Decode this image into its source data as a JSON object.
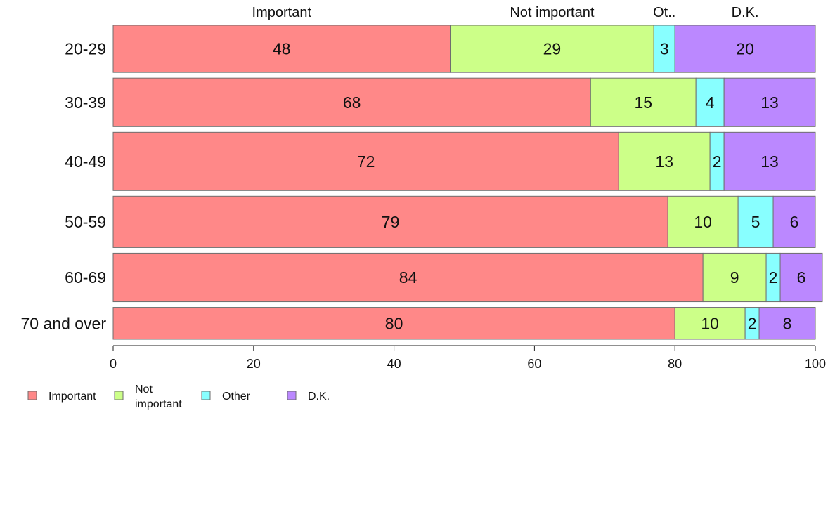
{
  "chart_data": {
    "type": "bar",
    "orientation": "horizontal",
    "stacked": true,
    "title": "",
    "xlabel": "",
    "ylabel": "",
    "xlim": [
      0,
      100
    ],
    "categories": [
      "20-29",
      "30-39",
      "40-49",
      "50-59",
      "60-69",
      "70 and over"
    ],
    "row_weights": [
      68,
      70,
      84,
      74,
      70,
      46
    ],
    "series": [
      {
        "name": "Important",
        "color": "#ff8888",
        "values": [
          48,
          68,
          72,
          79,
          84,
          80
        ]
      },
      {
        "name": "Not important",
        "color": "#ccff88",
        "values": [
          29,
          15,
          13,
          10,
          9,
          10
        ]
      },
      {
        "name": "Other",
        "color": "#88ffff",
        "values": [
          3,
          4,
          2,
          5,
          2,
          2
        ]
      },
      {
        "name": "D.K.",
        "color": "#bb88ff",
        "values": [
          20,
          13,
          13,
          6,
          6,
          8
        ]
      }
    ],
    "top_labels": [
      "Important",
      "Not important",
      "Ot..",
      "D.K."
    ],
    "ticks": [
      0,
      20,
      40,
      60,
      80,
      100
    ],
    "tick_labels": [
      "0",
      "20",
      "40",
      "60",
      "80",
      "100"
    ],
    "legend": {
      "placement": "bottom-left",
      "entries": [
        {
          "series": 0,
          "lines": [
            "Important"
          ]
        },
        {
          "series": 1,
          "lines": [
            "Not",
            "important"
          ]
        },
        {
          "series": 2,
          "lines": [
            "Other"
          ]
        },
        {
          "series": 3,
          "lines": [
            "D.K."
          ]
        }
      ]
    },
    "grid": false
  }
}
